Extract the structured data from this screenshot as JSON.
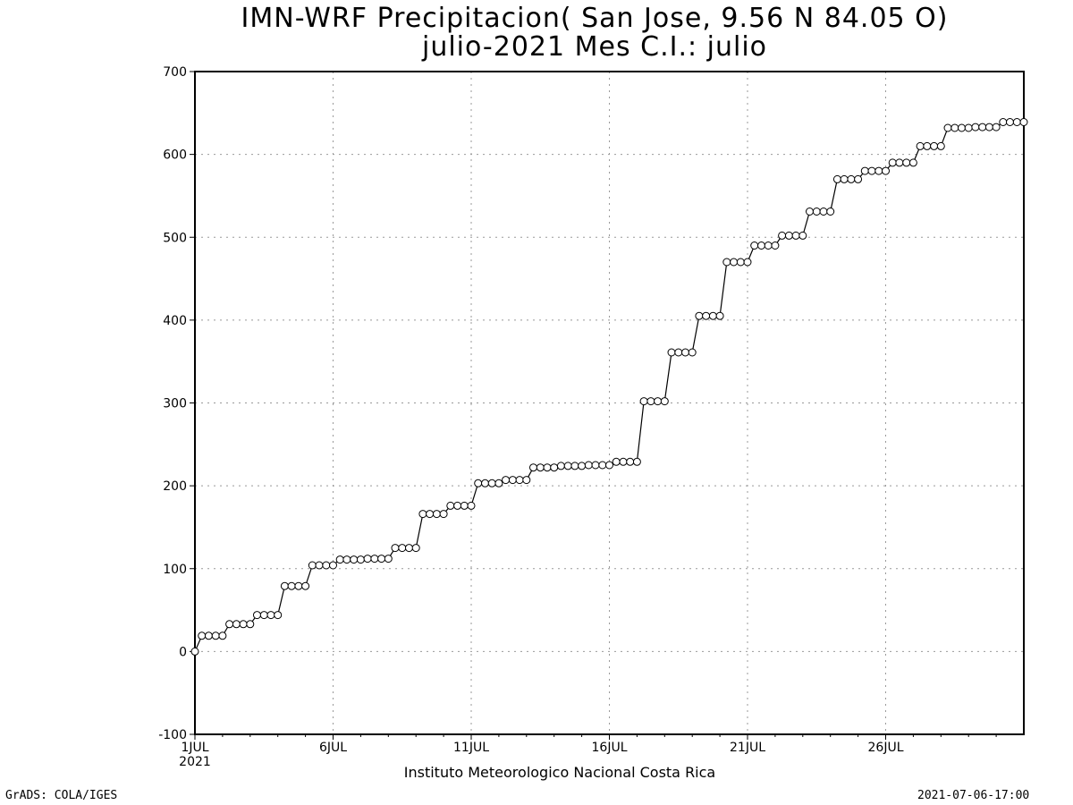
{
  "title_line1": "IMN-WRF  Precipitacion( San Jose, 9.56  N 84.05  O)",
  "title_line2": "julio-2021 Mes C.I.: julio",
  "xlabel": "Instituto Meteorologico Nacional Costa Rica",
  "footer_left": "GrADS: COLA/IGES",
  "footer_right": "2021-07-06-17:00",
  "colors": {
    "line": "#000000",
    "grid": "#999999",
    "marker_fill": "#ffffff"
  },
  "chart_data": {
    "type": "line",
    "title": "IMN-WRF  Precipitacion( San Jose, 9.56  N 84.05  O)",
    "subtitle": "julio-2021 Mes C.I.: julio",
    "xlabel": "Instituto Meteorologico Nacional Costa Rica",
    "ylabel": "",
    "x_unit": "days since 1 July 2021",
    "xlim": [
      0,
      30
    ],
    "ylim": [
      -100,
      700
    ],
    "yticks": [
      -100,
      0,
      100,
      200,
      300,
      400,
      500,
      600,
      700
    ],
    "xticks": [
      {
        "x": 0,
        "label": "1JUL",
        "sublabel": "2021"
      },
      {
        "x": 5,
        "label": "6JUL",
        "sublabel": ""
      },
      {
        "x": 10,
        "label": "11JUL",
        "sublabel": ""
      },
      {
        "x": 15,
        "label": "16JUL",
        "sublabel": ""
      },
      {
        "x": 20,
        "label": "21JUL",
        "sublabel": ""
      },
      {
        "x": 25,
        "label": "26JUL",
        "sublabel": ""
      }
    ],
    "grid": true,
    "markers": "open-circle",
    "series": [
      {
        "name": "",
        "y": [
          0,
          19,
          19,
          19,
          19,
          33,
          33,
          33,
          33,
          44,
          44,
          44,
          44,
          79,
          79,
          79,
          79,
          104,
          104,
          104,
          104,
          111,
          111,
          111,
          111,
          112,
          112,
          112,
          112,
          125,
          125,
          125,
          125,
          166,
          166,
          166,
          166,
          176,
          176,
          176,
          176,
          203,
          203,
          203,
          203,
          207,
          207,
          207,
          207,
          222,
          222,
          222,
          222,
          224,
          224,
          224,
          224,
          225,
          225,
          225,
          225,
          229,
          229,
          229,
          229,
          302,
          302,
          302,
          302,
          361,
          361,
          361,
          361,
          405,
          405,
          405,
          405,
          470,
          470,
          470,
          470,
          490,
          490,
          490,
          490,
          502,
          502,
          502,
          502,
          531,
          531,
          531,
          531,
          570,
          570,
          570,
          570,
          580,
          580,
          580,
          580,
          590,
          590,
          590,
          590,
          610,
          610,
          610,
          610,
          632,
          632,
          632,
          632,
          633,
          633,
          633,
          633,
          639,
          639,
          639,
          639
        ]
      }
    ]
  }
}
